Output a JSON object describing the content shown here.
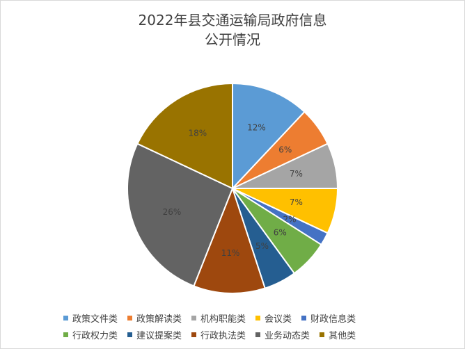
{
  "chart_data": {
    "type": "pie",
    "title": "2022年县交通运输局政府信息\n公开情况",
    "start": "12 o'clock, clockwise",
    "legend_position": "bottom",
    "slices": [
      {
        "label": "政策文件类",
        "value": 12,
        "display": "12%",
        "color": "#5b9bd5"
      },
      {
        "label": "政策解读类",
        "value": 6,
        "display": "6%",
        "color": "#ed7d31"
      },
      {
        "label": "机构职能类",
        "value": 7,
        "display": "7%",
        "color": "#a5a5a5"
      },
      {
        "label": "会议类",
        "value": 7,
        "display": "7%",
        "color": "#ffc000"
      },
      {
        "label": "财政信息类",
        "value": 2,
        "display": "2%",
        "color": "#4472c4"
      },
      {
        "label": "行政权力类",
        "value": 6,
        "display": "6%",
        "color": "#70ad47"
      },
      {
        "label": "建议提案类",
        "value": 5,
        "display": "5%",
        "color": "#255e91"
      },
      {
        "label": "行政执法类",
        "value": 11,
        "display": "11%",
        "color": "#9e480e"
      },
      {
        "label": "业务动态类",
        "value": 26,
        "display": "26%",
        "color": "#636363"
      },
      {
        "label": "其他类",
        "value": 18,
        "display": "18%",
        "color": "#997300"
      }
    ]
  }
}
